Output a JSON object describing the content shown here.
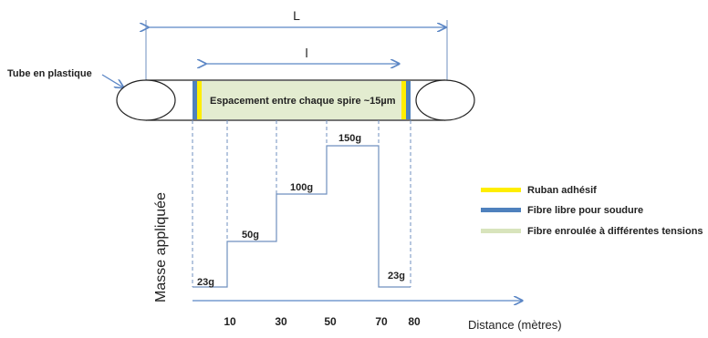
{
  "dimensions": {
    "outer": "L",
    "inner": "l"
  },
  "tube_label": "Tube en plastique",
  "spool_label": "Espacement entre chaque spire ~15µm",
  "axes": {
    "y_label": "Masse appliquée",
    "x_label": "Distance (mètres)"
  },
  "x_ticks": [
    "10",
    "30",
    "50",
    "70",
    "80"
  ],
  "steps": [
    {
      "label": "23g"
    },
    {
      "label": "50g"
    },
    {
      "label": "100g"
    },
    {
      "label": "150g"
    },
    {
      "label": "23g"
    }
  ],
  "legend": [
    {
      "label": "Ruban adhésif",
      "color": "#ffee00"
    },
    {
      "label": "Fibre libre pour soudure",
      "color": "#4f81bd"
    },
    {
      "label": "Fibre enroulée à différentes tensions",
      "color": "#d8e4bc"
    }
  ],
  "colors": {
    "line": "#6f8fbf",
    "axis": "#5b86c5",
    "spool_fill": "#e3ecd0"
  }
}
